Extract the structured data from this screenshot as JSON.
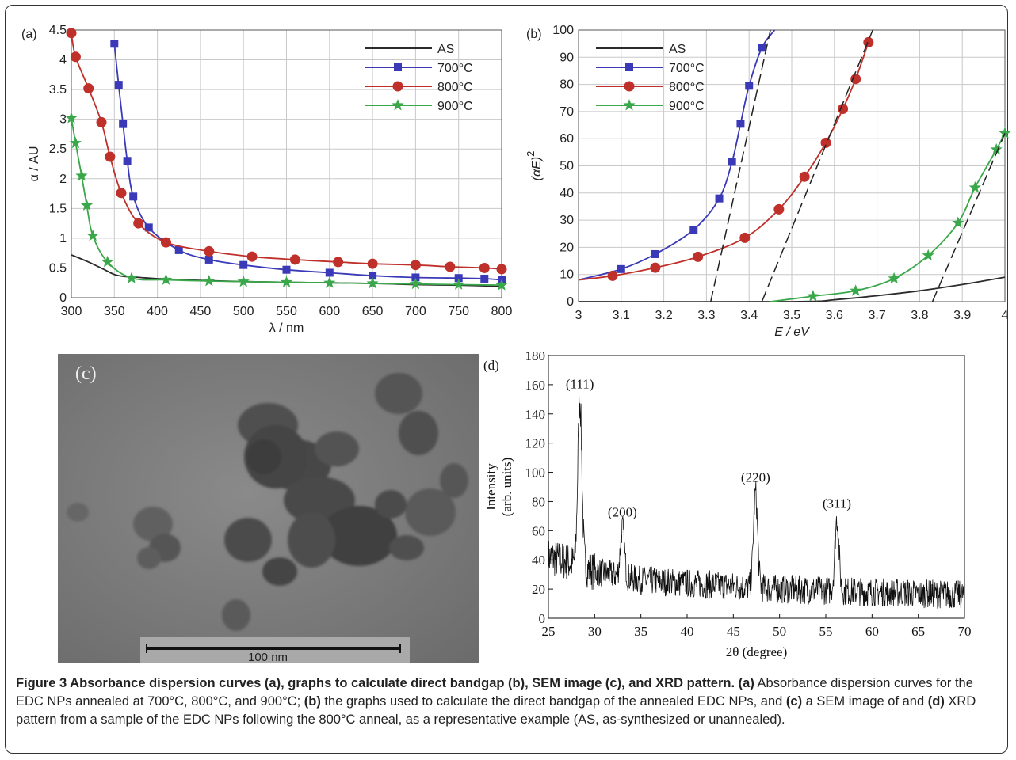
{
  "panel_a": {
    "label": "(a)",
    "xlabel": "λ / nm",
    "ylabel": "α / AU",
    "xticks": [
      "300",
      "350",
      "400",
      "450",
      "500",
      "550",
      "600",
      "650",
      "700",
      "750",
      "800"
    ],
    "yticks": [
      "0",
      "0.5",
      "1",
      "1.5",
      "2",
      "2.5",
      "3",
      "3.5",
      "4",
      "4.5"
    ]
  },
  "panel_b": {
    "label": "(b)",
    "xlabel": "E / eV",
    "ylabel": "(αE)",
    "ylabel_sup": "2",
    "xticks": [
      "3",
      "3.1",
      "3.2",
      "3.3",
      "3.4",
      "3.5",
      "3.6",
      "3.7",
      "3.8",
      "3.9",
      "4"
    ],
    "yticks": [
      "0",
      "10",
      "20",
      "30",
      "40",
      "50",
      "60",
      "70",
      "80",
      "90",
      "100"
    ]
  },
  "panel_c": {
    "label": "(c)",
    "scalebar": "100 nm"
  },
  "panel_d": {
    "label": "(d)",
    "xlabel": "2θ (degree)",
    "ylabel_1": "Intensity",
    "ylabel_2": "(arb. units)",
    "xticks": [
      "25",
      "30",
      "35",
      "40",
      "45",
      "50",
      "55",
      "60",
      "65",
      "70"
    ],
    "yticks": [
      "0",
      "20",
      "40",
      "60",
      "80",
      "100",
      "120",
      "140",
      "160",
      "180"
    ],
    "peaks": [
      "(111)",
      "(200)",
      "(220)",
      "(311)"
    ]
  },
  "legend": [
    "AS",
    "700°C",
    "800°C",
    "900°C"
  ],
  "colors": {
    "AS": "#2b2b2b",
    "700": "#3a3ab8",
    "800": "#c0302a",
    "900": "#3aa84a"
  },
  "caption": {
    "title": "Figure 3 Absorbance dispersion curves (a), graphs to calculate direct bandgap (b), SEM image (c), and XRD pattern.",
    "a_label": "(a)",
    "a_text": " Absorbance dispersion curves for the EDC NPs annealed at 700°C, 800°C, and 900°C; ",
    "b_label": "(b)",
    "b_text": " the graphs used to calculate the direct bandgap of the annealed EDC NPs, and ",
    "c_label": "(c)",
    "c_text": " a SEM image of and ",
    "d_label": "(d)",
    "d_text": " XRD pattern from a sample of the EDC NPs following the 800°C anneal, as a representative example (AS, as-synthesized or unannealed)."
  },
  "chart_data": [
    {
      "type": "line",
      "panel": "a",
      "xlabel": "λ / nm",
      "ylabel": "α / AU",
      "xlim": [
        300,
        800
      ],
      "ylim": [
        0,
        4.5
      ],
      "grid": true,
      "legend_position": "top-right",
      "series": [
        {
          "name": "AS",
          "x": [
            300,
            320,
            340,
            350,
            360,
            380,
            400,
            450,
            500,
            550,
            600,
            650,
            700,
            750,
            800
          ],
          "y": [
            0.72,
            0.6,
            0.46,
            0.39,
            0.36,
            0.34,
            0.32,
            0.29,
            0.27,
            0.26,
            0.25,
            0.24,
            0.22,
            0.21,
            0.19
          ]
        },
        {
          "name": "700°C",
          "marker": "square",
          "x": [
            350,
            355,
            360,
            365,
            372,
            390,
            425,
            460,
            500,
            550,
            600,
            650,
            700,
            750,
            780,
            800
          ],
          "y": [
            4.27,
            3.58,
            2.92,
            2.3,
            1.7,
            1.18,
            0.8,
            0.64,
            0.55,
            0.47,
            0.42,
            0.37,
            0.34,
            0.33,
            0.32,
            0.3
          ]
        },
        {
          "name": "800°C",
          "marker": "circle",
          "x": [
            300,
            305,
            320,
            335,
            345,
            358,
            378,
            410,
            460,
            510,
            560,
            610,
            650,
            700,
            740,
            780,
            800
          ],
          "y": [
            4.45,
            4.05,
            3.52,
            2.95,
            2.37,
            1.76,
            1.25,
            0.93,
            0.78,
            0.69,
            0.64,
            0.6,
            0.57,
            0.55,
            0.52,
            0.5,
            0.48
          ]
        },
        {
          "name": "900°C",
          "marker": "star",
          "x": [
            300,
            305,
            312,
            318,
            325,
            342,
            370,
            410,
            460,
            500,
            550,
            600,
            650,
            700,
            750,
            800
          ],
          "y": [
            3.02,
            2.6,
            2.05,
            1.55,
            1.04,
            0.6,
            0.33,
            0.3,
            0.28,
            0.27,
            0.26,
            0.25,
            0.24,
            0.23,
            0.22,
            0.21
          ]
        }
      ]
    },
    {
      "type": "line",
      "panel": "b",
      "xlabel": "E / eV",
      "ylabel": "(αE)²",
      "xlim": [
        3.0,
        4.0
      ],
      "ylim": [
        0,
        100
      ],
      "grid": true,
      "legend_position": "top-left",
      "series": [
        {
          "name": "AS",
          "x": [
            3.0,
            3.5,
            3.6,
            3.7,
            3.8,
            3.9,
            4.0
          ],
          "y": [
            0,
            0,
            0.7,
            2.2,
            4.0,
            6.3,
            9.0
          ]
        },
        {
          "name": "700°C",
          "marker": "square",
          "x": [
            3.0,
            3.1,
            3.18,
            3.27,
            3.33,
            3.36,
            3.38,
            3.4,
            3.43,
            3.46
          ],
          "y": [
            8,
            12,
            17.5,
            26.5,
            38,
            51.5,
            65.5,
            79.5,
            93.5,
            100
          ]
        },
        {
          "name": "800°C",
          "marker": "circle",
          "x": [
            3.0,
            3.08,
            3.18,
            3.28,
            3.39,
            3.47,
            3.53,
            3.58,
            3.62,
            3.65,
            3.68
          ],
          "y": [
            8,
            9.5,
            12.5,
            16.5,
            23.5,
            34,
            46,
            58.5,
            71,
            82,
            95.5
          ]
        },
        {
          "name": "900°C",
          "marker": "star",
          "x": [
            3.45,
            3.55,
            3.65,
            3.74,
            3.82,
            3.89,
            3.93,
            3.98,
            4.0
          ],
          "y": [
            0,
            2,
            4,
            8.5,
            17,
            29,
            42,
            56,
            62
          ]
        },
        {
          "name": "",
          "style": "dashed",
          "x": [
            3.31,
            3.45
          ],
          "y": [
            0,
            100
          ]
        },
        {
          "name": "",
          "style": "dashed",
          "x": [
            3.43,
            3.69
          ],
          "y": [
            0,
            100
          ]
        },
        {
          "name": "",
          "style": "dashed",
          "x": [
            3.83,
            4.0
          ],
          "y": [
            0,
            62
          ]
        }
      ]
    },
    {
      "type": "line",
      "panel": "d",
      "xlabel": "2θ (degree)",
      "ylabel": "Intensity (arb. units)",
      "xlim": [
        25,
        70
      ],
      "ylim": [
        0,
        180
      ],
      "grid": false,
      "peak_positions": [
        28.4,
        33.0,
        47.4,
        56.2
      ],
      "peak_heights": [
        150,
        62,
        86,
        68
      ],
      "peak_labels": [
        "(111)",
        "(200)",
        "(220)",
        "(311)"
      ],
      "background": [
        [
          25,
          42
        ],
        [
          28,
          37
        ],
        [
          30,
          32
        ],
        [
          35,
          26
        ],
        [
          40,
          24
        ],
        [
          45,
          22
        ],
        [
          50,
          20
        ],
        [
          55,
          19
        ],
        [
          60,
          18
        ],
        [
          65,
          17
        ],
        [
          70,
          16
        ]
      ]
    }
  ]
}
